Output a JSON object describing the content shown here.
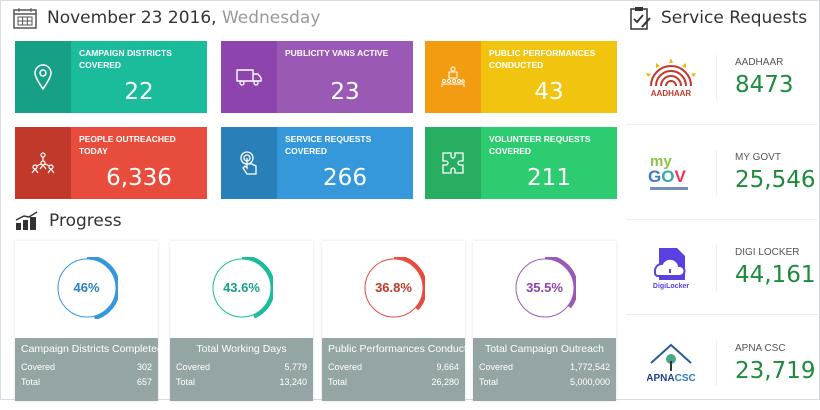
{
  "header": {
    "date": "November 23 2016,",
    "weekday": "Wednesday",
    "icon": "calendar-icon"
  },
  "tiles": [
    {
      "label": "Campaign Districts Covered",
      "value": "22",
      "icon": "map-pin-icon",
      "dark": "#16a085",
      "light": "#1abc9c"
    },
    {
      "label": "Publicity Vans Active",
      "value": "23",
      "icon": "van-icon",
      "dark": "#8e44ad",
      "light": "#9b59b6"
    },
    {
      "label": "Public Performances Conducted",
      "value": "43",
      "icon": "audience-icon",
      "dark": "#f39c12",
      "light": "#f1c40f"
    },
    {
      "label": "People Outreached Today",
      "value": "6,336",
      "icon": "people-network-icon",
      "dark": "#c0392b",
      "light": "#e74c3c"
    },
    {
      "label": "Service Requests Covered",
      "value": "266",
      "icon": "touch-icon",
      "dark": "#2980b9",
      "light": "#3498db"
    },
    {
      "label": "Volunteer Requests Covered",
      "value": "211",
      "icon": "puzzle-icon",
      "dark": "#27ae60",
      "light": "#2ecc71"
    }
  ],
  "progress": {
    "title": "Progress",
    "icon": "bar-chart-icon",
    "cards": [
      {
        "title": "Campaign Districts Completed",
        "percent": "46%",
        "fraction": 0.46,
        "color": "#3498db",
        "text": "#2a7fc0",
        "covered_label": "Covered",
        "covered": "302",
        "total_label": "Total",
        "total": "657"
      },
      {
        "title": "Total Working Days",
        "percent": "43.6%",
        "fraction": 0.436,
        "color": "#1abc9c",
        "text": "#16a085",
        "covered_label": "Covered",
        "covered": "5,779",
        "total_label": "Total",
        "total": "13,240"
      },
      {
        "title": "Public Performances Conducted",
        "percent": "36.8%",
        "fraction": 0.368,
        "color": "#e74c3c",
        "text": "#c0392b",
        "covered_label": "Covered",
        "covered": "9,664",
        "total_label": "Total",
        "total": "26,280"
      },
      {
        "title": "Total Campaign Outreach",
        "percent": "35.5%",
        "fraction": 0.355,
        "color": "#9b59b6",
        "text": "#8e44ad",
        "covered_label": "Covered",
        "covered": "1,772,542",
        "total_label": "Total",
        "total": "5,000,000"
      }
    ]
  },
  "service": {
    "title": "Service Requests",
    "icon": "clipboard-check-icon",
    "items": [
      {
        "name": "AADHAAR",
        "value": "8473",
        "logo": "AADHAAR"
      },
      {
        "name": "MY GOVT",
        "value": "25,546",
        "logo": "myGOV"
      },
      {
        "name": "DIGI LOCKER",
        "value": "44,161",
        "logo": "DigiLocker"
      },
      {
        "name": "APNA CSC",
        "value": "23,719",
        "logo": "APNA CSC"
      }
    ]
  }
}
